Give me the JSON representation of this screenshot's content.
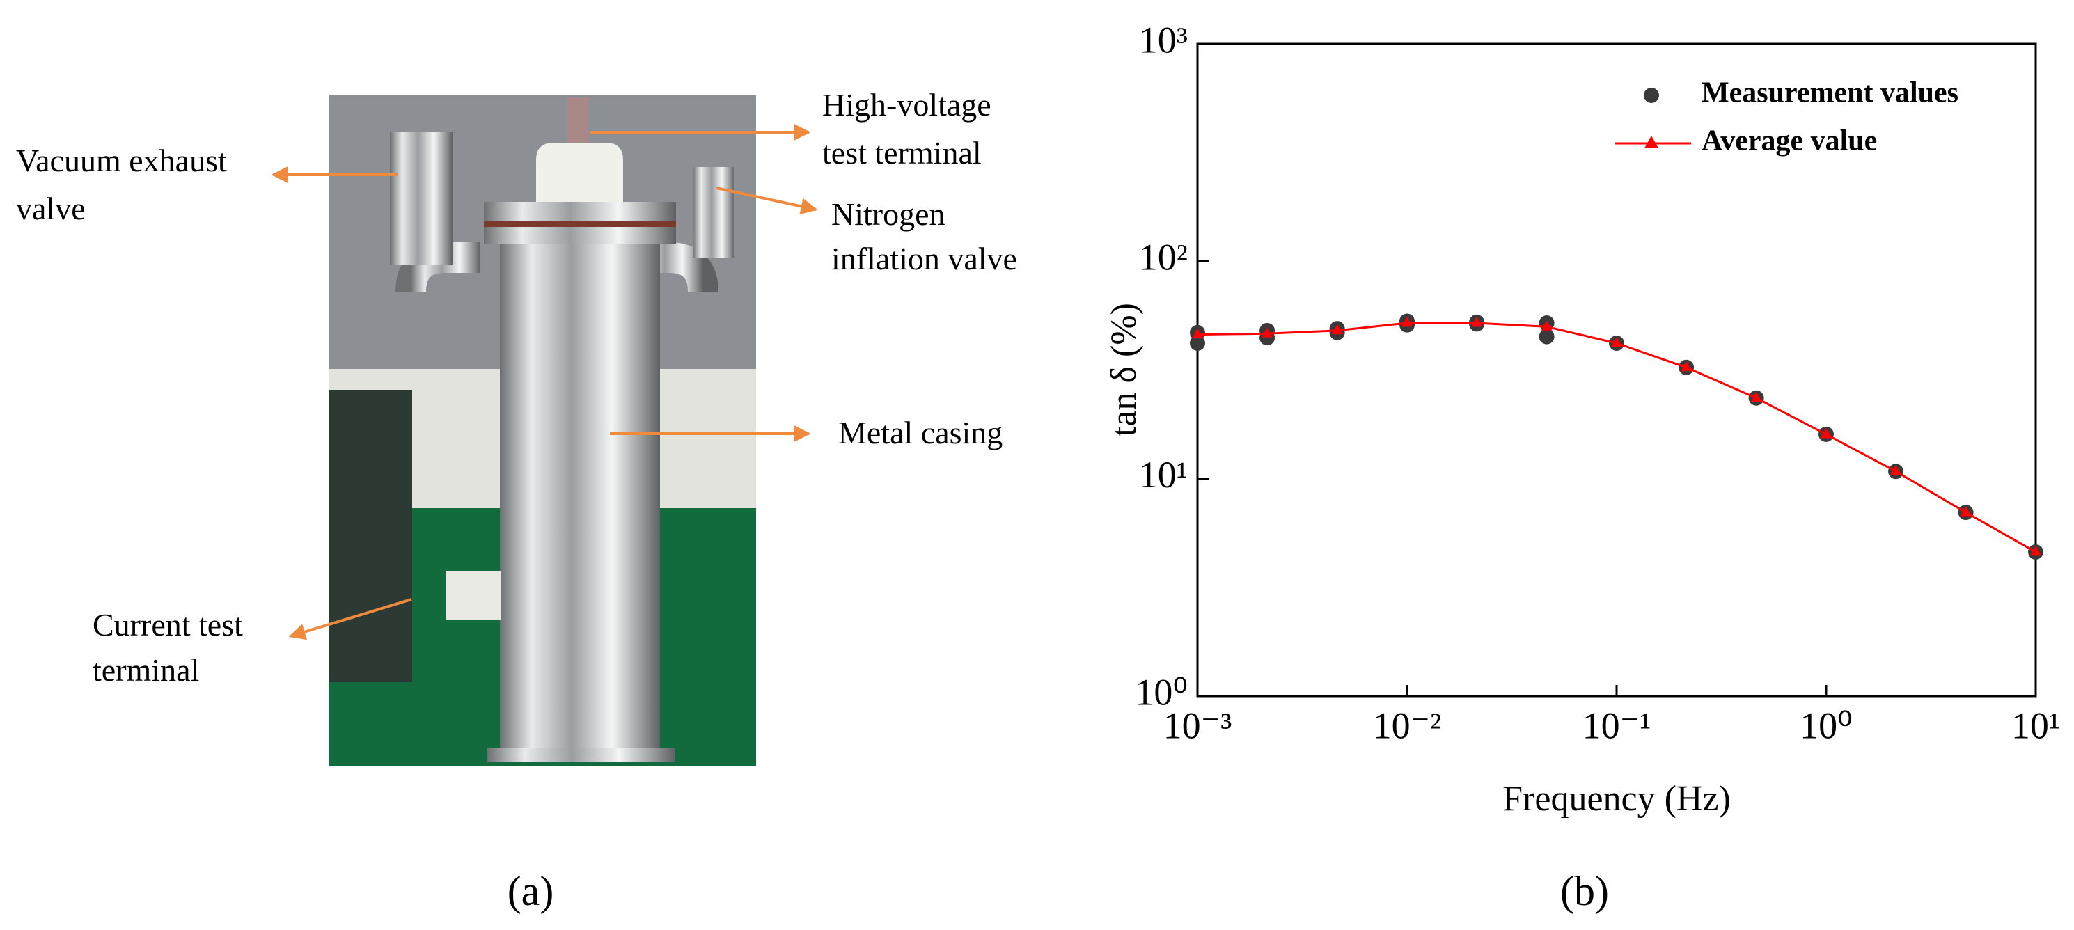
{
  "figure": {
    "panel_a": {
      "label": "(a)",
      "annotations": [
        {
          "lines": [
            "High-voltage",
            "test terminal"
          ]
        },
        {
          "lines": [
            "Vacuum exhaust",
            "valve"
          ]
        },
        {
          "lines": [
            "Nitrogen",
            "inflation valve"
          ]
        },
        {
          "lines": [
            "Metal casing"
          ]
        },
        {
          "lines": [
            "Current test",
            "terminal"
          ]
        }
      ]
    },
    "panel_b": {
      "label": "(b)"
    }
  },
  "chart_data": {
    "type": "line",
    "xlabel": "Frequency (Hz)",
    "ylabel": "tan δ (%)",
    "xscale": "log",
    "yscale": "log",
    "xlim": [
      0.001,
      10
    ],
    "ylim": [
      1,
      1000
    ],
    "xticks": [
      {
        "value": 0.001,
        "label": "10⁻³"
      },
      {
        "value": 0.01,
        "label": "10⁻²"
      },
      {
        "value": 0.1,
        "label": "10⁻¹"
      },
      {
        "value": 1,
        "label": "10⁰"
      },
      {
        "value": 10,
        "label": "10¹"
      }
    ],
    "yticks": [
      {
        "value": 1,
        "label": "10⁰"
      },
      {
        "value": 10,
        "label": "10¹"
      },
      {
        "value": 100,
        "label": "10²"
      },
      {
        "value": 1000,
        "label": "10³"
      }
    ],
    "legend": "upper right",
    "series": [
      {
        "name": "Measurement values",
        "type": "scatter",
        "color": "#3a3a3a",
        "x": [
          0.001,
          0.001,
          0.00215,
          0.00215,
          0.00464,
          0.00464,
          0.01,
          0.01,
          0.0215,
          0.0215,
          0.0464,
          0.0464,
          0.1,
          0.215,
          0.464,
          1,
          2.15,
          4.64,
          10
        ],
        "values": [
          42,
          47,
          44.5,
          48,
          47,
          49,
          51,
          53,
          51.5,
          52.5,
          45,
          52,
          42,
          32.5,
          23.5,
          16,
          10.8,
          7,
          4.6
        ]
      },
      {
        "name": "Average value",
        "type": "line",
        "color": "#ff0000",
        "x": [
          0.001,
          0.00215,
          0.00464,
          0.01,
          0.0215,
          0.0464,
          0.1,
          0.215,
          0.464,
          1,
          2.15,
          4.64,
          10
        ],
        "values": [
          46,
          46.5,
          48,
          52,
          52,
          50,
          42,
          32.5,
          23.5,
          16,
          10.8,
          7,
          4.6
        ]
      }
    ]
  }
}
